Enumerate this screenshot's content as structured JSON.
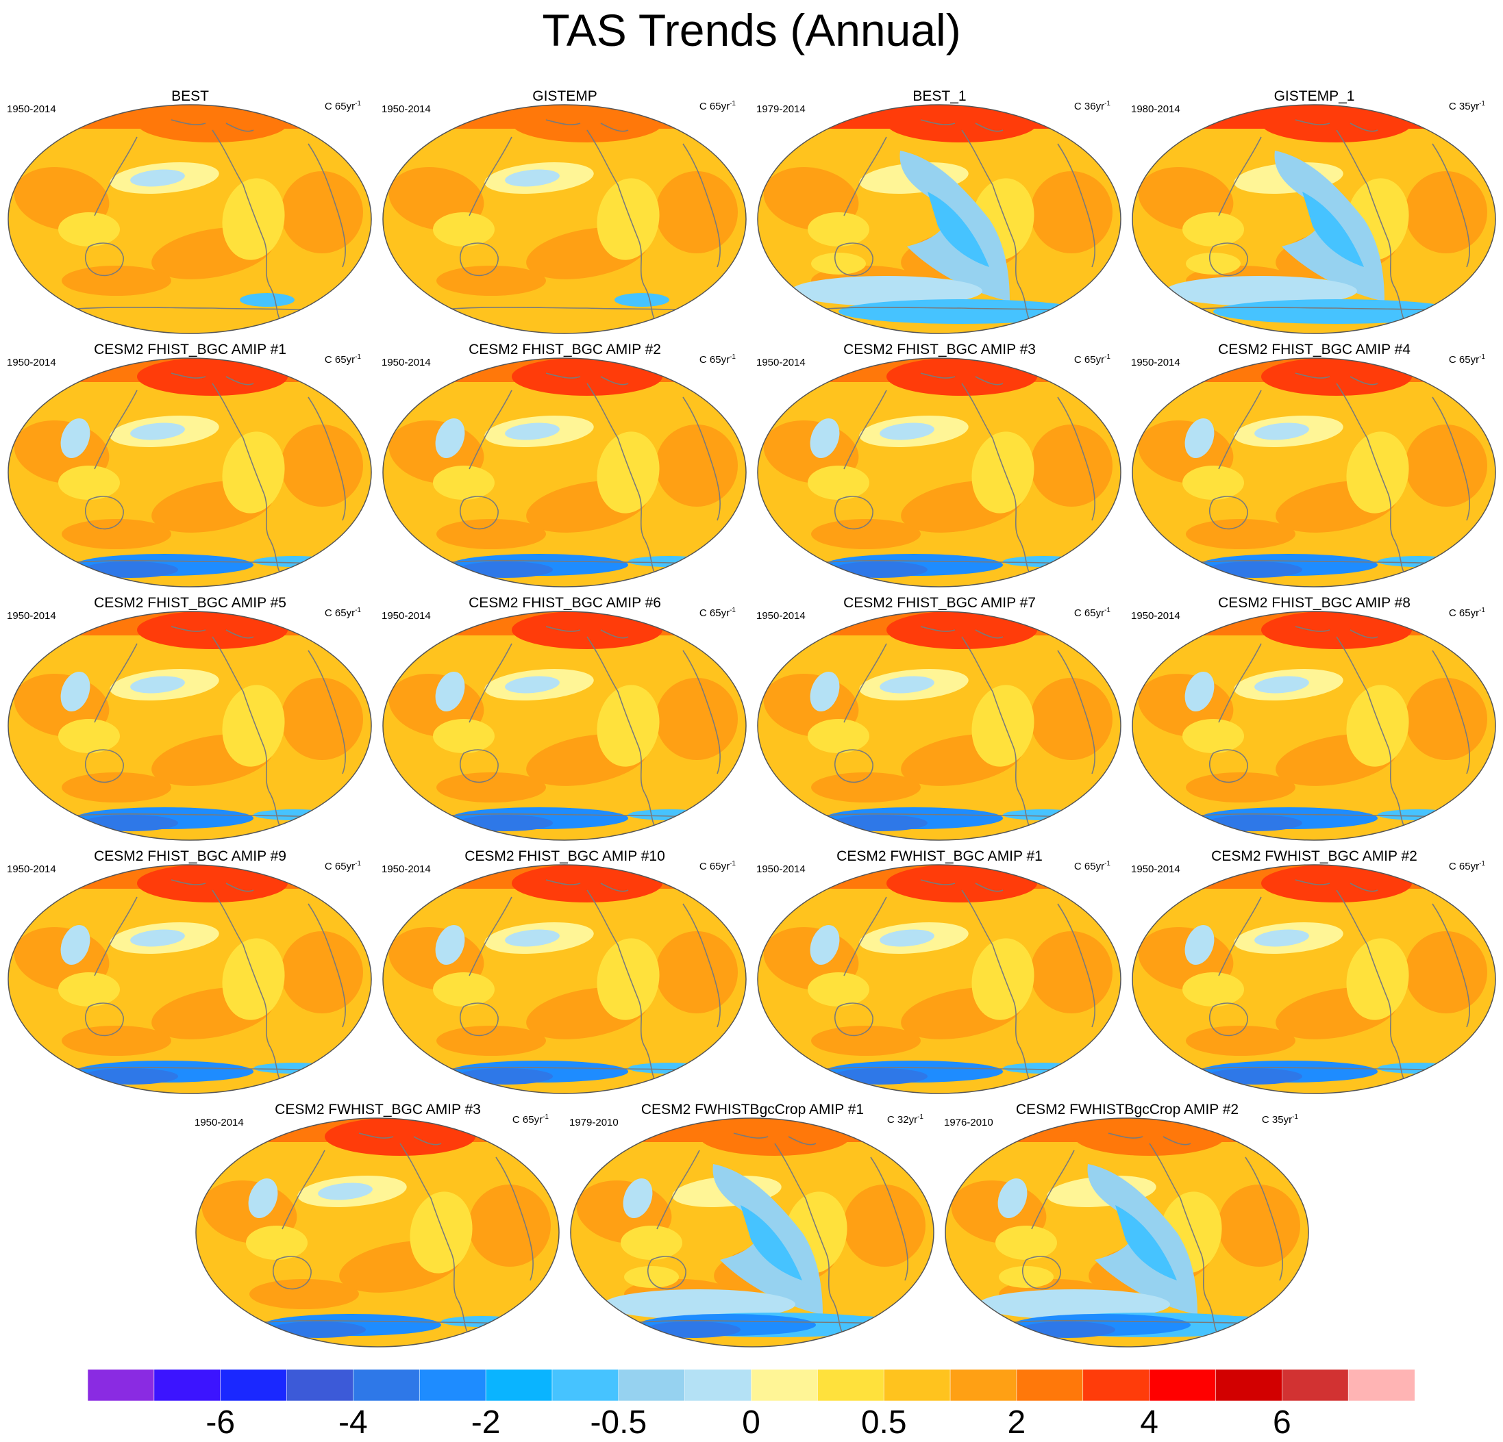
{
  "title": "TAS Trends (Annual)",
  "panels": [
    {
      "name": "BEST",
      "period": "1950-2014",
      "units": "C 65yr",
      "units_sup": "-1",
      "style": "obs-long"
    },
    {
      "name": "GISTEMP",
      "period": "1950-2014",
      "units": "C 65yr",
      "units_sup": "-1",
      "style": "obs-long"
    },
    {
      "name": "BEST_1",
      "period": "1979-2014",
      "units": "C 36yr",
      "units_sup": "-1",
      "style": "obs-short"
    },
    {
      "name": "GISTEMP_1",
      "period": "1980-2014",
      "units": "C 35yr",
      "units_sup": "-1",
      "style": "obs-short"
    },
    {
      "name": "CESM2 FHIST_BGC AMIP #1",
      "period": "1950-2014",
      "units": "C 65yr",
      "units_sup": "-1",
      "style": "model-long"
    },
    {
      "name": "CESM2 FHIST_BGC AMIP #2",
      "period": "1950-2014",
      "units": "C 65yr",
      "units_sup": "-1",
      "style": "model-long"
    },
    {
      "name": "CESM2 FHIST_BGC AMIP #3",
      "period": "1950-2014",
      "units": "C 65yr",
      "units_sup": "-1",
      "style": "model-long"
    },
    {
      "name": "CESM2 FHIST_BGC AMIP #4",
      "period": "1950-2014",
      "units": "C 65yr",
      "units_sup": "-1",
      "style": "model-long"
    },
    {
      "name": "CESM2 FHIST_BGC AMIP #5",
      "period": "1950-2014",
      "units": "C 65yr",
      "units_sup": "-1",
      "style": "model-long"
    },
    {
      "name": "CESM2 FHIST_BGC AMIP #6",
      "period": "1950-2014",
      "units": "C 65yr",
      "units_sup": "-1",
      "style": "model-long"
    },
    {
      "name": "CESM2 FHIST_BGC AMIP #7",
      "period": "1950-2014",
      "units": "C 65yr",
      "units_sup": "-1",
      "style": "model-long"
    },
    {
      "name": "CESM2 FHIST_BGC AMIP #8",
      "period": "1950-2014",
      "units": "C 65yr",
      "units_sup": "-1",
      "style": "model-long"
    },
    {
      "name": "CESM2 FHIST_BGC AMIP #9",
      "period": "1950-2014",
      "units": "C 65yr",
      "units_sup": "-1",
      "style": "model-long"
    },
    {
      "name": "CESM2 FHIST_BGC AMIP #10",
      "period": "1950-2014",
      "units": "C 65yr",
      "units_sup": "-1",
      "style": "model-long"
    },
    {
      "name": "CESM2 FWHIST_BGC AMIP #1",
      "period": "1950-2014",
      "units": "C 65yr",
      "units_sup": "-1",
      "style": "model-long"
    },
    {
      "name": "CESM2 FWHIST_BGC AMIP #2",
      "period": "1950-2014",
      "units": "C 65yr",
      "units_sup": "-1",
      "style": "model-long"
    },
    {
      "name": "CESM2 FWHIST_BGC AMIP #3",
      "period": "1950-2014",
      "units": "C 65yr",
      "units_sup": "-1",
      "style": "model-long"
    },
    {
      "name": "CESM2 FWHISTBgcCrop AMIP #1",
      "period": "1979-2010",
      "units": "C 32yr",
      "units_sup": "-1",
      "style": "model-short"
    },
    {
      "name": "CESM2 FWHISTBgcCrop AMIP #2",
      "period": "1976-2010",
      "units": "C 35yr",
      "units_sup": "-1",
      "style": "model-short"
    }
  ],
  "colorbar": {
    "colors": [
      "#8a2be2",
      "#3c14ff",
      "#1a28ff",
      "#3c5ad8",
      "#2e78e8",
      "#1e8cff",
      "#0ab4ff",
      "#46c3ff",
      "#96d2f0",
      "#b4e1f5",
      "#fff596",
      "#ffe13c",
      "#ffc31e",
      "#ffa014",
      "#ff780a",
      "#ff3c0a",
      "#ff0000",
      "#d20000",
      "#d23232",
      "#ffb4b4"
    ],
    "labels": [
      {
        "text": "-6",
        "boundary": 2
      },
      {
        "text": "-4",
        "boundary": 4
      },
      {
        "text": "-2",
        "boundary": 6
      },
      {
        "text": "-0.5",
        "boundary": 8
      },
      {
        "text": "0",
        "boundary": 10
      },
      {
        "text": "0.5",
        "boundary": 12
      },
      {
        "text": "2",
        "boundary": 14
      },
      {
        "text": "4",
        "boundary": 16
      },
      {
        "text": "6",
        "boundary": 18
      }
    ]
  }
}
